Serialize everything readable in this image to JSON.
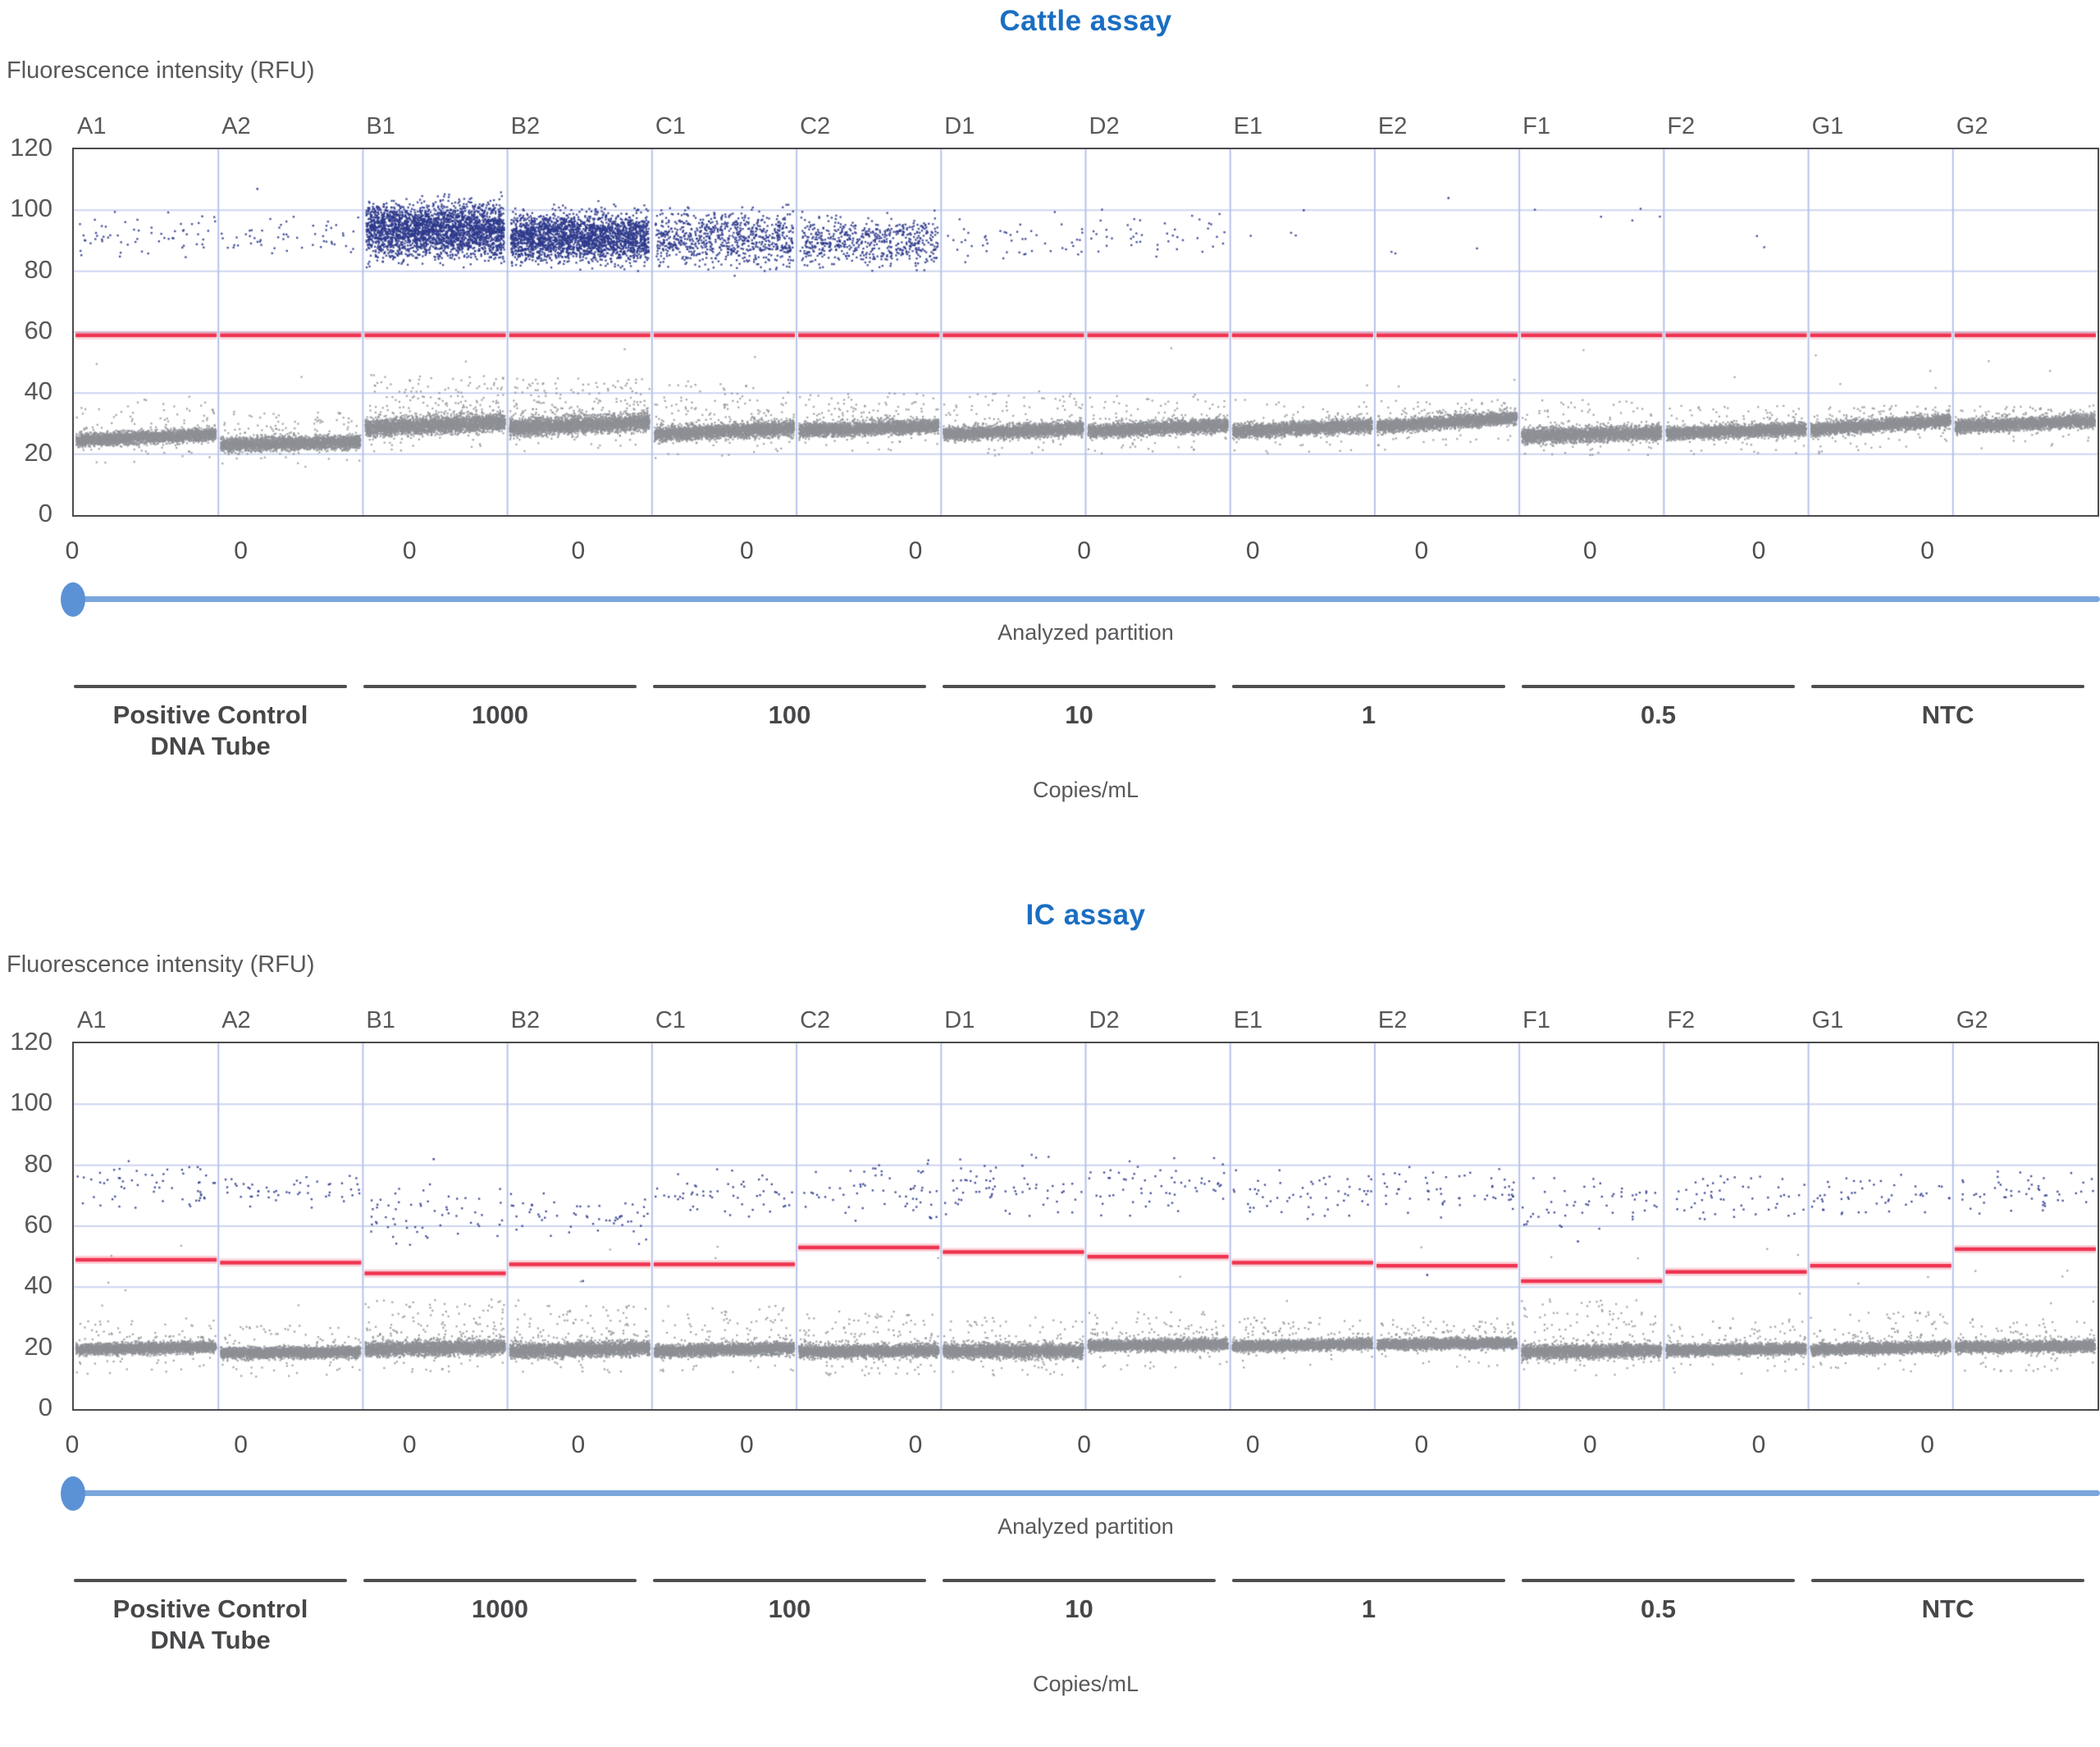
{
  "colors": {
    "title": "#1a6ec2",
    "text": "#58585b",
    "positive_dot": "#2e3a8c",
    "negative_dot": "#8d9095",
    "threshold_line": "#ee3350",
    "gridline": "#ccd4ef",
    "well_divider": "#b7c2ea",
    "plot_border": "#4b4b4d",
    "slider_line": "#79a6dc",
    "slider_knob": "#5b92d5",
    "group_line": "#4f4f51"
  },
  "chart_data": [
    {
      "type": "scatter",
      "title": "Cattle assay",
      "ylabel": "Fluorescence intensity (RFU)",
      "xlabel": "Copies/mL",
      "partition_axis_label": "Analyzed partition",
      "ylim": [
        0,
        120
      ],
      "yticks": [
        120,
        100,
        80,
        60,
        40,
        20,
        0
      ],
      "gridlines": [
        100,
        80,
        60,
        40,
        20
      ],
      "partition_ticks": [
        "0",
        "0",
        "0",
        "0",
        "0",
        "0",
        "0",
        "0",
        "0",
        "0",
        "0",
        "0"
      ],
      "groups": [
        {
          "label_lines": [
            "Positive Control",
            "DNA Tube"
          ]
        },
        {
          "label_lines": [
            "1000"
          ]
        },
        {
          "label_lines": [
            "100"
          ]
        },
        {
          "label_lines": [
            "10"
          ]
        },
        {
          "label_lines": [
            "1"
          ]
        },
        {
          "label_lines": [
            "0.5"
          ]
        },
        {
          "label_lines": [
            "NTC"
          ]
        }
      ],
      "wells": [
        {
          "id": "A1",
          "threshold": 59,
          "positives": {
            "count": 60,
            "min": 83,
            "max": 100
          },
          "negatives": {
            "count": 3000,
            "center": 25.5,
            "sd": 1.7,
            "slope": 2,
            "tail_max": 38,
            "tail_rate": 0.02
          },
          "outliers": []
        },
        {
          "id": "A2",
          "threshold": 59,
          "positives": {
            "count": 55,
            "min": 83,
            "max": 100
          },
          "negatives": {
            "count": 3000,
            "center": 23.5,
            "sd": 1.8,
            "slope": 1,
            "tail_max": 34,
            "tail_rate": 0.02
          },
          "outliers": [
            107
          ]
        },
        {
          "id": "B1",
          "threshold": 59,
          "positives": {
            "count": 2600,
            "min": 68,
            "max": 116,
            "mu": 93.5,
            "sd": 7
          },
          "negatives": {
            "count": 3200,
            "center": 29.5,
            "sd": 2.3,
            "slope": 2,
            "tail_max": 46,
            "tail_rate": 0.05
          },
          "outliers": []
        },
        {
          "id": "B2",
          "threshold": 59,
          "positives": {
            "count": 2300,
            "min": 69,
            "max": 112,
            "mu": 91,
            "sd": 6.5
          },
          "negatives": {
            "count": 3200,
            "center": 29.5,
            "sd": 2.3,
            "slope": 2,
            "tail_max": 45,
            "tail_rate": 0.05
          },
          "outliers": []
        },
        {
          "id": "C1",
          "threshold": 59,
          "positives": {
            "count": 760,
            "min": 64,
            "max": 103,
            "mu": 90.5,
            "sd": 6.8
          },
          "negatives": {
            "count": 3000,
            "center": 27.5,
            "sd": 2,
            "slope": 2,
            "tail_max": 43,
            "tail_rate": 0.035
          },
          "outliers": []
        },
        {
          "id": "C2",
          "threshold": 59,
          "positives": {
            "count": 560,
            "min": 62,
            "max": 101,
            "mu": 89.5,
            "sd": 6
          },
          "negatives": {
            "count": 3000,
            "center": 28.5,
            "sd": 1.9,
            "slope": 1.5,
            "tail_max": 40,
            "tail_rate": 0.03
          },
          "outliers": []
        },
        {
          "id": "D1",
          "threshold": 59,
          "positives": {
            "count": 48,
            "min": 80,
            "max": 100
          },
          "negatives": {
            "count": 2900,
            "center": 27.5,
            "sd": 1.8,
            "slope": 2,
            "tail_max": 40,
            "tail_rate": 0.02
          },
          "outliers": []
        },
        {
          "id": "D2",
          "threshold": 59,
          "positives": {
            "count": 44,
            "min": 82,
            "max": 101
          },
          "negatives": {
            "count": 2900,
            "center": 28.5,
            "sd": 1.8,
            "slope": 2,
            "tail_max": 40,
            "tail_rate": 0.02
          },
          "outliers": []
        },
        {
          "id": "E1",
          "threshold": 59,
          "positives": {
            "count": 3,
            "min": 91,
            "max": 93
          },
          "negatives": {
            "count": 2900,
            "center": 28.5,
            "sd": 1.8,
            "slope": 2,
            "tail_max": 38,
            "tail_rate": 0.015
          },
          "outliers": [
            100
          ]
        },
        {
          "id": "E2",
          "threshold": 59,
          "positives": {
            "count": 3,
            "min": 83,
            "max": 88
          },
          "negatives": {
            "count": 2900,
            "center": 30.5,
            "sd": 1.7,
            "slope": 3,
            "tail_max": 38,
            "tail_rate": 0.015
          },
          "outliers": [
            104
          ]
        },
        {
          "id": "F1",
          "threshold": 59,
          "positives": {
            "count": 5,
            "min": 90,
            "max": 105
          },
          "negatives": {
            "count": 2900,
            "center": 26.5,
            "sd": 2,
            "slope": 1,
            "tail_max": 38,
            "tail_rate": 0.02
          },
          "outliers": []
        },
        {
          "id": "F2",
          "threshold": 59,
          "positives": {
            "count": 2,
            "min": 85,
            "max": 94
          },
          "negatives": {
            "count": 2900,
            "center": 27.5,
            "sd": 1.7,
            "slope": 1.5,
            "tail_max": 36,
            "tail_rate": 0.015
          },
          "outliers": []
        },
        {
          "id": "G1",
          "threshold": 59,
          "positives": {
            "count": 0,
            "min": 0,
            "max": 0
          },
          "negatives": {
            "count": 2900,
            "center": 29.5,
            "sd": 1.7,
            "slope": 3,
            "tail_max": 36,
            "tail_rate": 0.015
          },
          "outliers": []
        },
        {
          "id": "G2",
          "threshold": 59,
          "positives": {
            "count": 0,
            "min": 0,
            "max": 0
          },
          "negatives": {
            "count": 2900,
            "center": 30,
            "sd": 1.7,
            "slope": 2,
            "tail_max": 36,
            "tail_rate": 0.015
          },
          "outliers": []
        }
      ]
    },
    {
      "type": "scatter",
      "title": "IC assay",
      "ylabel": "Fluorescence intensity (RFU)",
      "xlabel": "Copies/mL",
      "partition_axis_label": "Analyzed partition",
      "ylim": [
        0,
        120
      ],
      "yticks": [
        120,
        100,
        80,
        60,
        40,
        20,
        0
      ],
      "gridlines": [
        100,
        80,
        60,
        40,
        20
      ],
      "partition_ticks": [
        "0",
        "0",
        "0",
        "0",
        "0",
        "0",
        "0",
        "0",
        "0",
        "0",
        "0",
        "0"
      ],
      "groups": [
        {
          "label_lines": [
            "Positive Control",
            "DNA Tube"
          ]
        },
        {
          "label_lines": [
            "1000"
          ]
        },
        {
          "label_lines": [
            "100"
          ]
        },
        {
          "label_lines": [
            "10"
          ]
        },
        {
          "label_lines": [
            "1"
          ]
        },
        {
          "label_lines": [
            "0.5"
          ]
        },
        {
          "label_lines": [
            "NTC"
          ]
        }
      ],
      "wells": [
        {
          "id": "A1",
          "threshold": 49,
          "positives": {
            "count": 58,
            "min": 64,
            "max": 82
          },
          "negatives": {
            "count": 2900,
            "center": 20,
            "sd": 1.5,
            "slope": 1,
            "tail_max": 30,
            "tail_rate": 0.02
          },
          "outliers": []
        },
        {
          "id": "A2",
          "threshold": 48,
          "positives": {
            "count": 52,
            "min": 66,
            "max": 77
          },
          "negatives": {
            "count": 2900,
            "center": 18.5,
            "sd": 1.5,
            "slope": 0.5,
            "tail_max": 28,
            "tail_rate": 0.015
          },
          "outliers": []
        },
        {
          "id": "B1",
          "threshold": 44.5,
          "positives": {
            "count": 58,
            "min": 53,
            "max": 76
          },
          "negatives": {
            "count": 3100,
            "center": 20,
            "sd": 1.9,
            "slope": 1,
            "tail_max": 36,
            "tail_rate": 0.04
          },
          "outliers": [
            82
          ]
        },
        {
          "id": "B2",
          "threshold": 47.5,
          "positives": {
            "count": 56,
            "min": 53,
            "max": 73
          },
          "negatives": {
            "count": 3000,
            "center": 19.5,
            "sd": 1.9,
            "slope": 1,
            "tail_max": 34,
            "tail_rate": 0.03
          },
          "outliers": [
            42
          ]
        },
        {
          "id": "C1",
          "threshold": 47.5,
          "positives": {
            "count": 56,
            "min": 60,
            "max": 80
          },
          "negatives": {
            "count": 2900,
            "center": 19.5,
            "sd": 1.6,
            "slope": 1,
            "tail_max": 34,
            "tail_rate": 0.025
          },
          "outliers": []
        },
        {
          "id": "C2",
          "threshold": 53,
          "positives": {
            "count": 62,
            "min": 60,
            "max": 83
          },
          "negatives": {
            "count": 2900,
            "center": 19,
            "sd": 1.7,
            "slope": 0.5,
            "tail_max": 32,
            "tail_rate": 0.03
          },
          "outliers": []
        },
        {
          "id": "D1",
          "threshold": 51.5,
          "positives": {
            "count": 64,
            "min": 62,
            "max": 84
          },
          "negatives": {
            "count": 2900,
            "center": 19,
            "sd": 1.9,
            "slope": 0,
            "tail_max": 30,
            "tail_rate": 0.02
          },
          "outliers": []
        },
        {
          "id": "D2",
          "threshold": 50,
          "positives": {
            "count": 60,
            "min": 62,
            "max": 84
          },
          "negatives": {
            "count": 2900,
            "center": 21,
            "sd": 1.5,
            "slope": 0.5,
            "tail_max": 32,
            "tail_rate": 0.02
          },
          "outliers": []
        },
        {
          "id": "E1",
          "threshold": 48,
          "positives": {
            "count": 56,
            "min": 62,
            "max": 80
          },
          "negatives": {
            "count": 2900,
            "center": 21,
            "sd": 1.4,
            "slope": 1,
            "tail_max": 30,
            "tail_rate": 0.02
          },
          "outliers": []
        },
        {
          "id": "E2",
          "threshold": 47,
          "positives": {
            "count": 56,
            "min": 62,
            "max": 80
          },
          "negatives": {
            "count": 2900,
            "center": 21.5,
            "sd": 1.4,
            "slope": 0.5,
            "tail_max": 30,
            "tail_rate": 0.02
          },
          "outliers": [
            44
          ]
        },
        {
          "id": "F1",
          "threshold": 42,
          "positives": {
            "count": 52,
            "min": 58,
            "max": 78
          },
          "negatives": {
            "count": 2900,
            "center": 19,
            "sd": 1.8,
            "slope": 0.5,
            "tail_max": 36,
            "tail_rate": 0.03
          },
          "outliers": [
            55
          ]
        },
        {
          "id": "F2",
          "threshold": 45,
          "positives": {
            "count": 52,
            "min": 60,
            "max": 78
          },
          "negatives": {
            "count": 2900,
            "center": 19.5,
            "sd": 1.5,
            "slope": 0.5,
            "tail_max": 30,
            "tail_rate": 0.02
          },
          "outliers": []
        },
        {
          "id": "G1",
          "threshold": 47,
          "positives": {
            "count": 50,
            "min": 62,
            "max": 78
          },
          "negatives": {
            "count": 2900,
            "center": 20,
            "sd": 1.5,
            "slope": 1,
            "tail_max": 32,
            "tail_rate": 0.02
          },
          "outliers": []
        },
        {
          "id": "G2",
          "threshold": 52.5,
          "positives": {
            "count": 52,
            "min": 62,
            "max": 80
          },
          "negatives": {
            "count": 2900,
            "center": 20.5,
            "sd": 1.5,
            "slope": 0.5,
            "tail_max": 30,
            "tail_rate": 0.02
          },
          "outliers": []
        }
      ]
    }
  ]
}
